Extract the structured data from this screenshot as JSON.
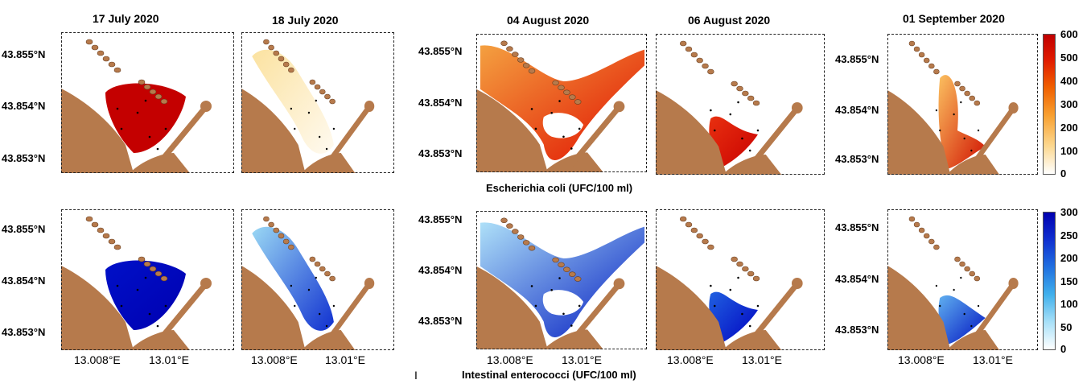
{
  "figure": {
    "dates": [
      "17 July 2020",
      "18 July 2020",
      "04 August 2020",
      "06 August 2020",
      "01 September 2020"
    ],
    "latitudes": [
      "43.855°N",
      "43.854°N",
      "43.853°N"
    ],
    "longitudes": [
      "13.008°E",
      "13.01°E"
    ],
    "ecoli_caption": "Escherichia coli (UFC/100 ml)",
    "entero_caption": "Intestinal enterococci (UFC/100 ml)",
    "ecoli_scale": {
      "min": 0,
      "max": 600,
      "ticks": [
        "600",
        "500",
        "400",
        "300",
        "200",
        "100",
        "0"
      ],
      "colors": [
        "#c8000a",
        "#ffffff"
      ]
    },
    "entero_scale": {
      "min": 0,
      "max": 300,
      "ticks": [
        "300",
        "250",
        "200",
        "150",
        "100",
        "50",
        "0"
      ],
      "colors": [
        "#0000c0",
        "#ffffff"
      ]
    },
    "stray_mark": "I",
    "land_color": "#b67a4c"
  }
}
